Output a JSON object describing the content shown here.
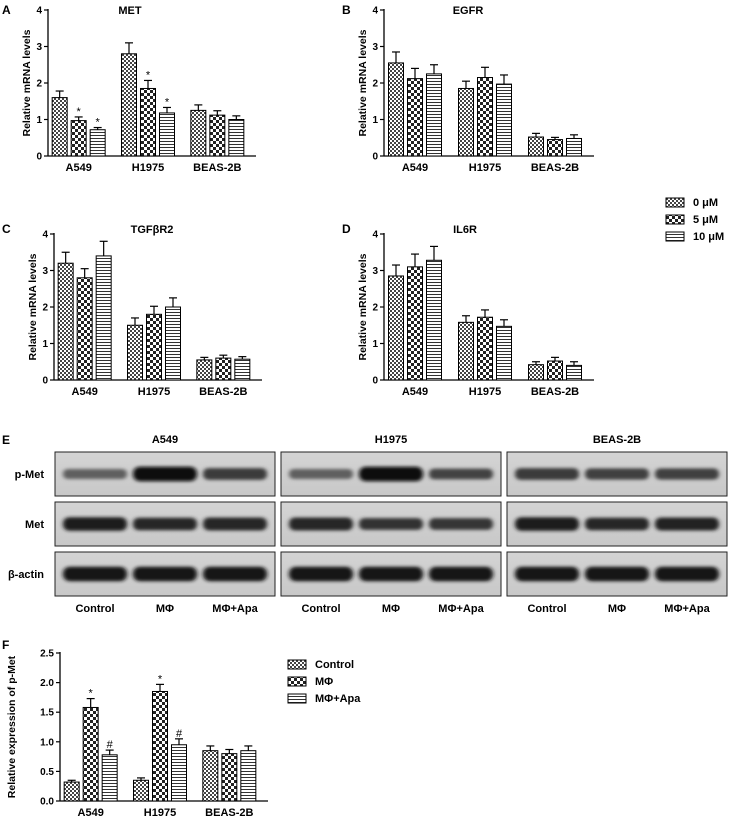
{
  "chart_data": [
    {
      "id": "A",
      "panel_label": "A",
      "type": "bar",
      "title": "MET",
      "ylabel": "Relative mRNA levels",
      "ylim": [
        0,
        4
      ],
      "yticks": [
        0,
        1,
        2,
        3,
        4
      ],
      "categories": [
        "A549",
        "H1975",
        "BEAS-2B"
      ],
      "series": [
        {
          "name": "0 μM",
          "pattern": "checker",
          "values": [
            1.6,
            2.8,
            1.25
          ],
          "errors": [
            0.18,
            0.3,
            0.15
          ],
          "marks": [
            "",
            "",
            ""
          ]
        },
        {
          "name": "5 μM",
          "pattern": "diamond",
          "values": [
            0.97,
            1.85,
            1.12
          ],
          "errors": [
            0.1,
            0.22,
            0.12
          ],
          "marks": [
            "*",
            "*",
            ""
          ]
        },
        {
          "name": "10 μM",
          "pattern": "hline",
          "values": [
            0.72,
            1.18,
            1.0
          ],
          "errors": [
            0.06,
            0.15,
            0.1
          ],
          "marks": [
            "*",
            "*",
            ""
          ]
        }
      ]
    },
    {
      "id": "B",
      "panel_label": "B",
      "type": "bar",
      "title": "EGFR",
      "ylabel": "Relative mRNA levels",
      "ylim": [
        0,
        4
      ],
      "yticks": [
        0,
        1,
        2,
        3,
        4
      ],
      "categories": [
        "A549",
        "H1975",
        "BEAS-2B"
      ],
      "series": [
        {
          "name": "0 μM",
          "pattern": "checker",
          "values": [
            2.55,
            1.85,
            0.52
          ],
          "errors": [
            0.3,
            0.2,
            0.1
          ],
          "marks": [
            "",
            "",
            ""
          ]
        },
        {
          "name": "5 μM",
          "pattern": "diamond",
          "values": [
            2.12,
            2.15,
            0.45
          ],
          "errors": [
            0.28,
            0.28,
            0.06
          ],
          "marks": [
            "",
            "",
            ""
          ]
        },
        {
          "name": "10 μM",
          "pattern": "hline",
          "values": [
            2.25,
            1.97,
            0.48
          ],
          "errors": [
            0.25,
            0.25,
            0.1
          ],
          "marks": [
            "",
            "",
            ""
          ]
        }
      ]
    },
    {
      "id": "C",
      "panel_label": "C",
      "type": "bar",
      "title": "TGFβR2",
      "ylabel": "Relative mRNA levels",
      "ylim": [
        0,
        4
      ],
      "yticks": [
        0,
        1,
        2,
        3,
        4
      ],
      "categories": [
        "A549",
        "H1975",
        "BEAS-2B"
      ],
      "series": [
        {
          "name": "0 μM",
          "pattern": "checker",
          "values": [
            3.2,
            1.5,
            0.55
          ],
          "errors": [
            0.3,
            0.2,
            0.07
          ],
          "marks": [
            "",
            "",
            ""
          ]
        },
        {
          "name": "5 μM",
          "pattern": "diamond",
          "values": [
            2.8,
            1.8,
            0.6
          ],
          "errors": [
            0.25,
            0.22,
            0.08
          ],
          "marks": [
            "",
            "",
            ""
          ]
        },
        {
          "name": "10 μM",
          "pattern": "hline",
          "values": [
            3.4,
            2.0,
            0.57
          ],
          "errors": [
            0.4,
            0.25,
            0.07
          ],
          "marks": [
            "",
            "",
            ""
          ]
        }
      ]
    },
    {
      "id": "D",
      "panel_label": "D",
      "type": "bar",
      "title": "IL6R",
      "ylabel": "Relative mRNA levels",
      "ylim": [
        0,
        4
      ],
      "yticks": [
        0,
        1,
        2,
        3,
        4
      ],
      "categories": [
        "A549",
        "H1975",
        "BEAS-2B"
      ],
      "series": [
        {
          "name": "0 μM",
          "pattern": "checker",
          "values": [
            2.85,
            1.58,
            0.42
          ],
          "errors": [
            0.3,
            0.18,
            0.08
          ],
          "marks": [
            "",
            "",
            ""
          ]
        },
        {
          "name": "5 μM",
          "pattern": "diamond",
          "values": [
            3.1,
            1.72,
            0.52
          ],
          "errors": [
            0.35,
            0.2,
            0.1
          ],
          "marks": [
            "",
            "",
            ""
          ]
        },
        {
          "name": "10 μM",
          "pattern": "hline",
          "values": [
            3.28,
            1.47,
            0.4
          ],
          "errors": [
            0.38,
            0.18,
            0.1
          ],
          "marks": [
            "",
            "",
            ""
          ]
        }
      ]
    },
    {
      "id": "F",
      "panel_label": "F",
      "type": "bar",
      "title": "",
      "ylabel": "Relative expression of p-Met",
      "ylim": [
        0,
        2.5
      ],
      "yticks": [
        0.0,
        0.5,
        1.0,
        1.5,
        2.0,
        2.5
      ],
      "categories": [
        "A549",
        "H1975",
        "BEAS-2B"
      ],
      "series": [
        {
          "name": "Control",
          "pattern": "checker",
          "values": [
            0.32,
            0.35,
            0.85
          ],
          "errors": [
            0.03,
            0.04,
            0.08
          ],
          "marks": [
            "",
            "",
            ""
          ]
        },
        {
          "name": "MΦ",
          "pattern": "diamond",
          "values": [
            1.58,
            1.85,
            0.8
          ],
          "errors": [
            0.15,
            0.12,
            0.07
          ],
          "marks": [
            "*",
            "*",
            ""
          ]
        },
        {
          "name": "MΦ+Apa",
          "pattern": "hline",
          "values": [
            0.78,
            0.95,
            0.85
          ],
          "errors": [
            0.08,
            0.1,
            0.08
          ],
          "marks": [
            "#",
            "#",
            ""
          ]
        }
      ]
    }
  ],
  "legend_top": [
    "0 μM",
    "5 μM",
    "10 μM"
  ],
  "legend_f": [
    "Control",
    "MΦ",
    "MΦ+Apa"
  ],
  "blot": {
    "panel_label": "E",
    "cell_lines": [
      "A549",
      "H1975",
      "BEAS-2B"
    ],
    "rows": [
      {
        "label": "p-Met",
        "intensity": [
          [
            0.55,
            1.0,
            0.75
          ],
          [
            0.55,
            1.0,
            0.7
          ],
          [
            0.75,
            0.72,
            0.72
          ]
        ],
        "thickness": [
          [
            0.55,
            0.8,
            0.65
          ],
          [
            0.55,
            0.8,
            0.6
          ],
          [
            0.65,
            0.62,
            0.62
          ]
        ]
      },
      {
        "label": "Met",
        "intensity": [
          [
            0.9,
            0.85,
            0.85
          ],
          [
            0.85,
            0.8,
            0.78
          ],
          [
            0.9,
            0.85,
            0.88
          ]
        ],
        "thickness": [
          [
            0.75,
            0.7,
            0.72
          ],
          [
            0.72,
            0.65,
            0.65
          ],
          [
            0.75,
            0.7,
            0.72
          ]
        ]
      },
      {
        "label": "β-actin",
        "intensity": [
          [
            0.95,
            0.95,
            0.95
          ],
          [
            0.95,
            0.95,
            0.95
          ],
          [
            0.95,
            0.95,
            0.95
          ]
        ],
        "thickness": [
          [
            0.8,
            0.8,
            0.8
          ],
          [
            0.8,
            0.8,
            0.8
          ],
          [
            0.8,
            0.8,
            0.8
          ]
        ]
      }
    ],
    "lanes": [
      "Control",
      "MΦ",
      "MΦ+Apa"
    ]
  }
}
